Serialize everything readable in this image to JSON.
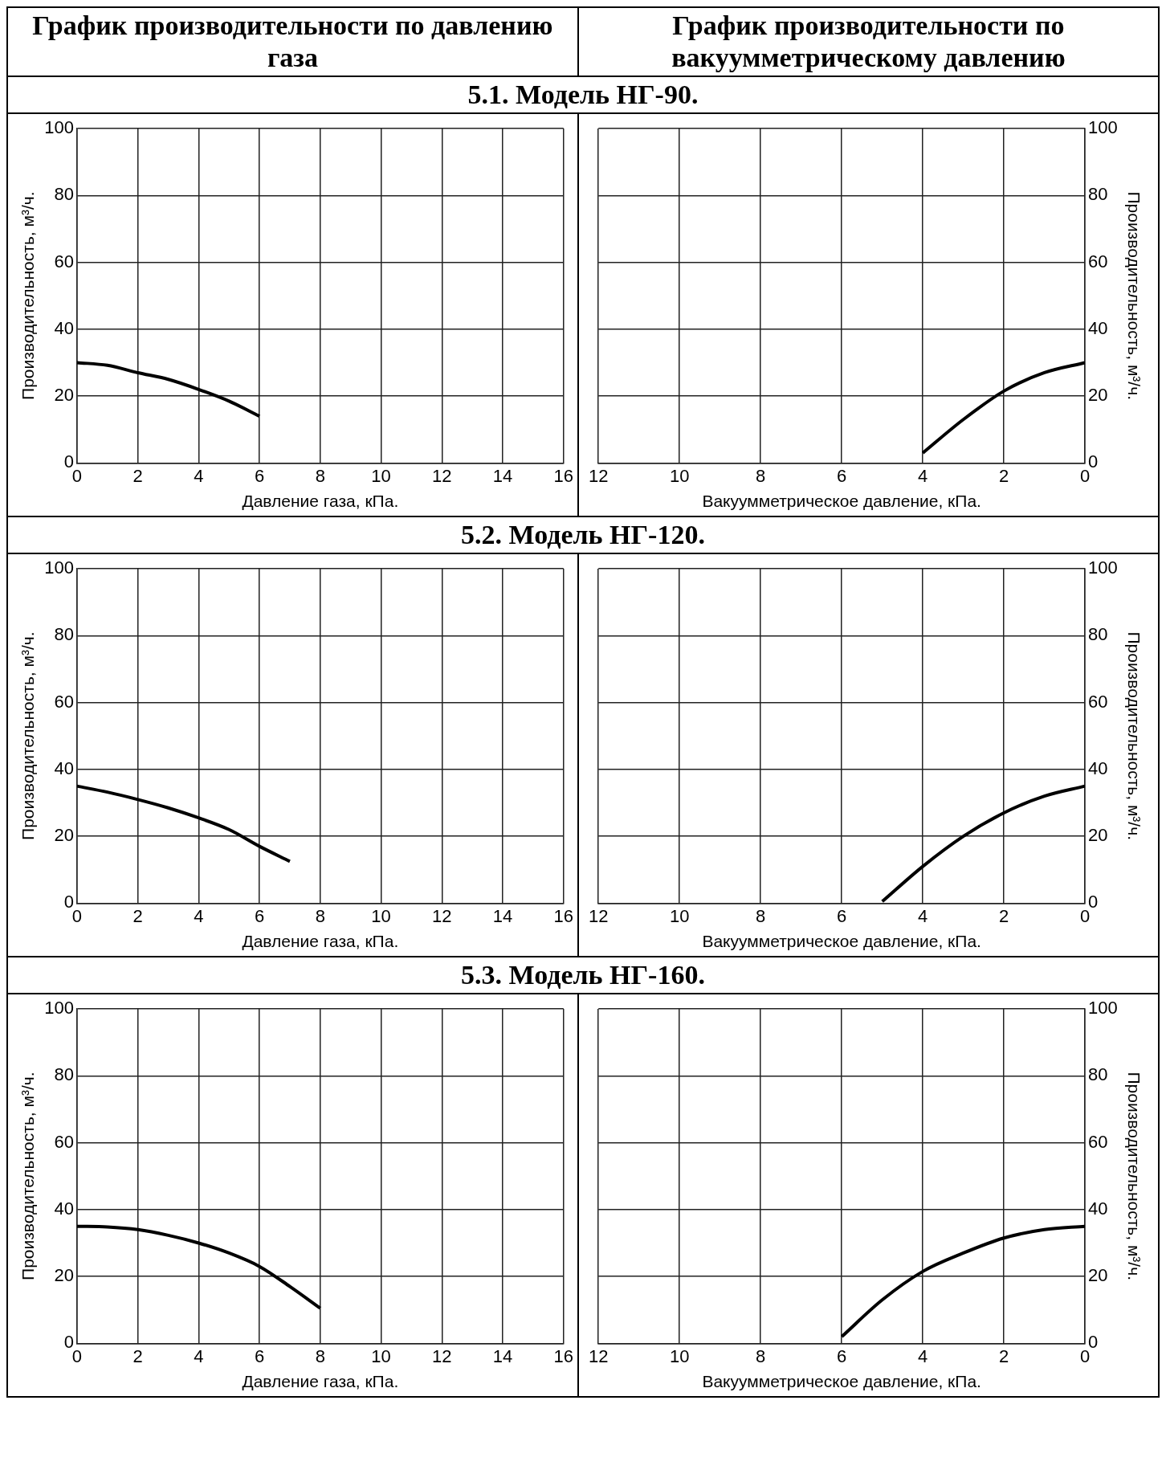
{
  "chart_data": [
    {
      "type": "line",
      "title": "5.1. Модель НГ-90.",
      "subtitle": "График производительности по давлению газа",
      "xlabel": "Давление газа, кПа.",
      "ylabel": "Производительность, м³/ч.",
      "xlim": [
        0,
        16
      ],
      "xticks": [
        0,
        2,
        4,
        6,
        8,
        10,
        12,
        14,
        16
      ],
      "ylim": [
        0,
        100
      ],
      "yticks": [
        0,
        20,
        40,
        60,
        80,
        100
      ],
      "grid": true,
      "marker": "none",
      "series": [
        {
          "color": "#000000",
          "x": [
            0,
            1,
            2,
            3,
            4,
            5,
            6
          ],
          "values": [
            30,
            29.2,
            27,
            25,
            22,
            18.5,
            14
          ]
        }
      ]
    },
    {
      "type": "line",
      "subtitle": "График производительности по вакуумметрическому давлению",
      "xlabel": "Вакуумметрическое давление, кПа.",
      "y2label": "Производительность, м³/ч.",
      "xlim": [
        12,
        0
      ],
      "xticks": [
        12,
        10,
        8,
        6,
        4,
        2,
        0
      ],
      "y2lim": [
        0,
        100
      ],
      "y2ticks": [
        0,
        20,
        40,
        60,
        80,
        100
      ],
      "grid": true,
      "marker": "none",
      "series": [
        {
          "color": "#000000",
          "axis": "y2",
          "x": [
            0,
            1,
            2,
            3,
            4
          ],
          "values": [
            30,
            27,
            21.5,
            13,
            3
          ]
        }
      ]
    },
    {
      "type": "line",
      "title": "5.2. Модель НГ-120.",
      "xlabel": "Давление газа, кПа.",
      "ylabel": "Производительность, м³/ч.",
      "xlim": [
        0,
        16
      ],
      "xticks": [
        0,
        2,
        4,
        6,
        8,
        10,
        12,
        14,
        16
      ],
      "ylim": [
        0,
        100
      ],
      "yticks": [
        0,
        20,
        40,
        60,
        80,
        100
      ],
      "grid": true,
      "marker": "none",
      "series": [
        {
          "color": "#000000",
          "x": [
            0,
            1,
            2,
            3,
            4,
            5,
            6,
            7
          ],
          "values": [
            35,
            33.2,
            31,
            28.5,
            25.5,
            22,
            17,
            12.5
          ]
        }
      ]
    },
    {
      "type": "line",
      "xlabel": "Вакуумметрическое давление, кПа.",
      "y2label": "Производительность, м³/ч.",
      "xlim": [
        12,
        0
      ],
      "xticks": [
        12,
        10,
        8,
        6,
        4,
        2,
        0
      ],
      "y2lim": [
        0,
        100
      ],
      "y2ticks": [
        0,
        20,
        40,
        60,
        80,
        100
      ],
      "grid": true,
      "marker": "none",
      "series": [
        {
          "color": "#000000",
          "axis": "y2",
          "x": [
            0,
            1,
            2,
            3,
            4,
            5
          ],
          "values": [
            35,
            32,
            27,
            20,
            11,
            0.5
          ]
        }
      ]
    },
    {
      "type": "line",
      "title": "5.3. Модель НГ-160.",
      "xlabel": "Давление газа, кПа.",
      "ylabel": "Производительность, м³/ч.",
      "xlim": [
        0,
        16
      ],
      "xticks": [
        0,
        2,
        4,
        6,
        8,
        10,
        12,
        14,
        16
      ],
      "ylim": [
        0,
        100
      ],
      "yticks": [
        0,
        20,
        40,
        60,
        80,
        100
      ],
      "grid": true,
      "marker": "none",
      "series": [
        {
          "color": "#000000",
          "x": [
            0,
            1,
            2,
            3,
            4,
            5,
            6,
            7,
            8
          ],
          "values": [
            35,
            34.8,
            34,
            32.3,
            30,
            27,
            23,
            17,
            10.5
          ]
        }
      ]
    },
    {
      "type": "line",
      "xlabel": "Вакуумметрическое давление, кПа.",
      "y2label": "Производительность, м³/ч.",
      "xlim": [
        12,
        0
      ],
      "xticks": [
        12,
        10,
        8,
        6,
        4,
        2,
        0
      ],
      "y2lim": [
        0,
        100
      ],
      "y2ticks": [
        0,
        20,
        40,
        60,
        80,
        100
      ],
      "grid": true,
      "marker": "none",
      "series": [
        {
          "color": "#000000",
          "axis": "y2",
          "x": [
            0,
            1,
            2,
            3,
            4,
            5,
            6
          ],
          "values": [
            35,
            34,
            31.5,
            27,
            21.5,
            13,
            2
          ]
        }
      ]
    }
  ]
}
